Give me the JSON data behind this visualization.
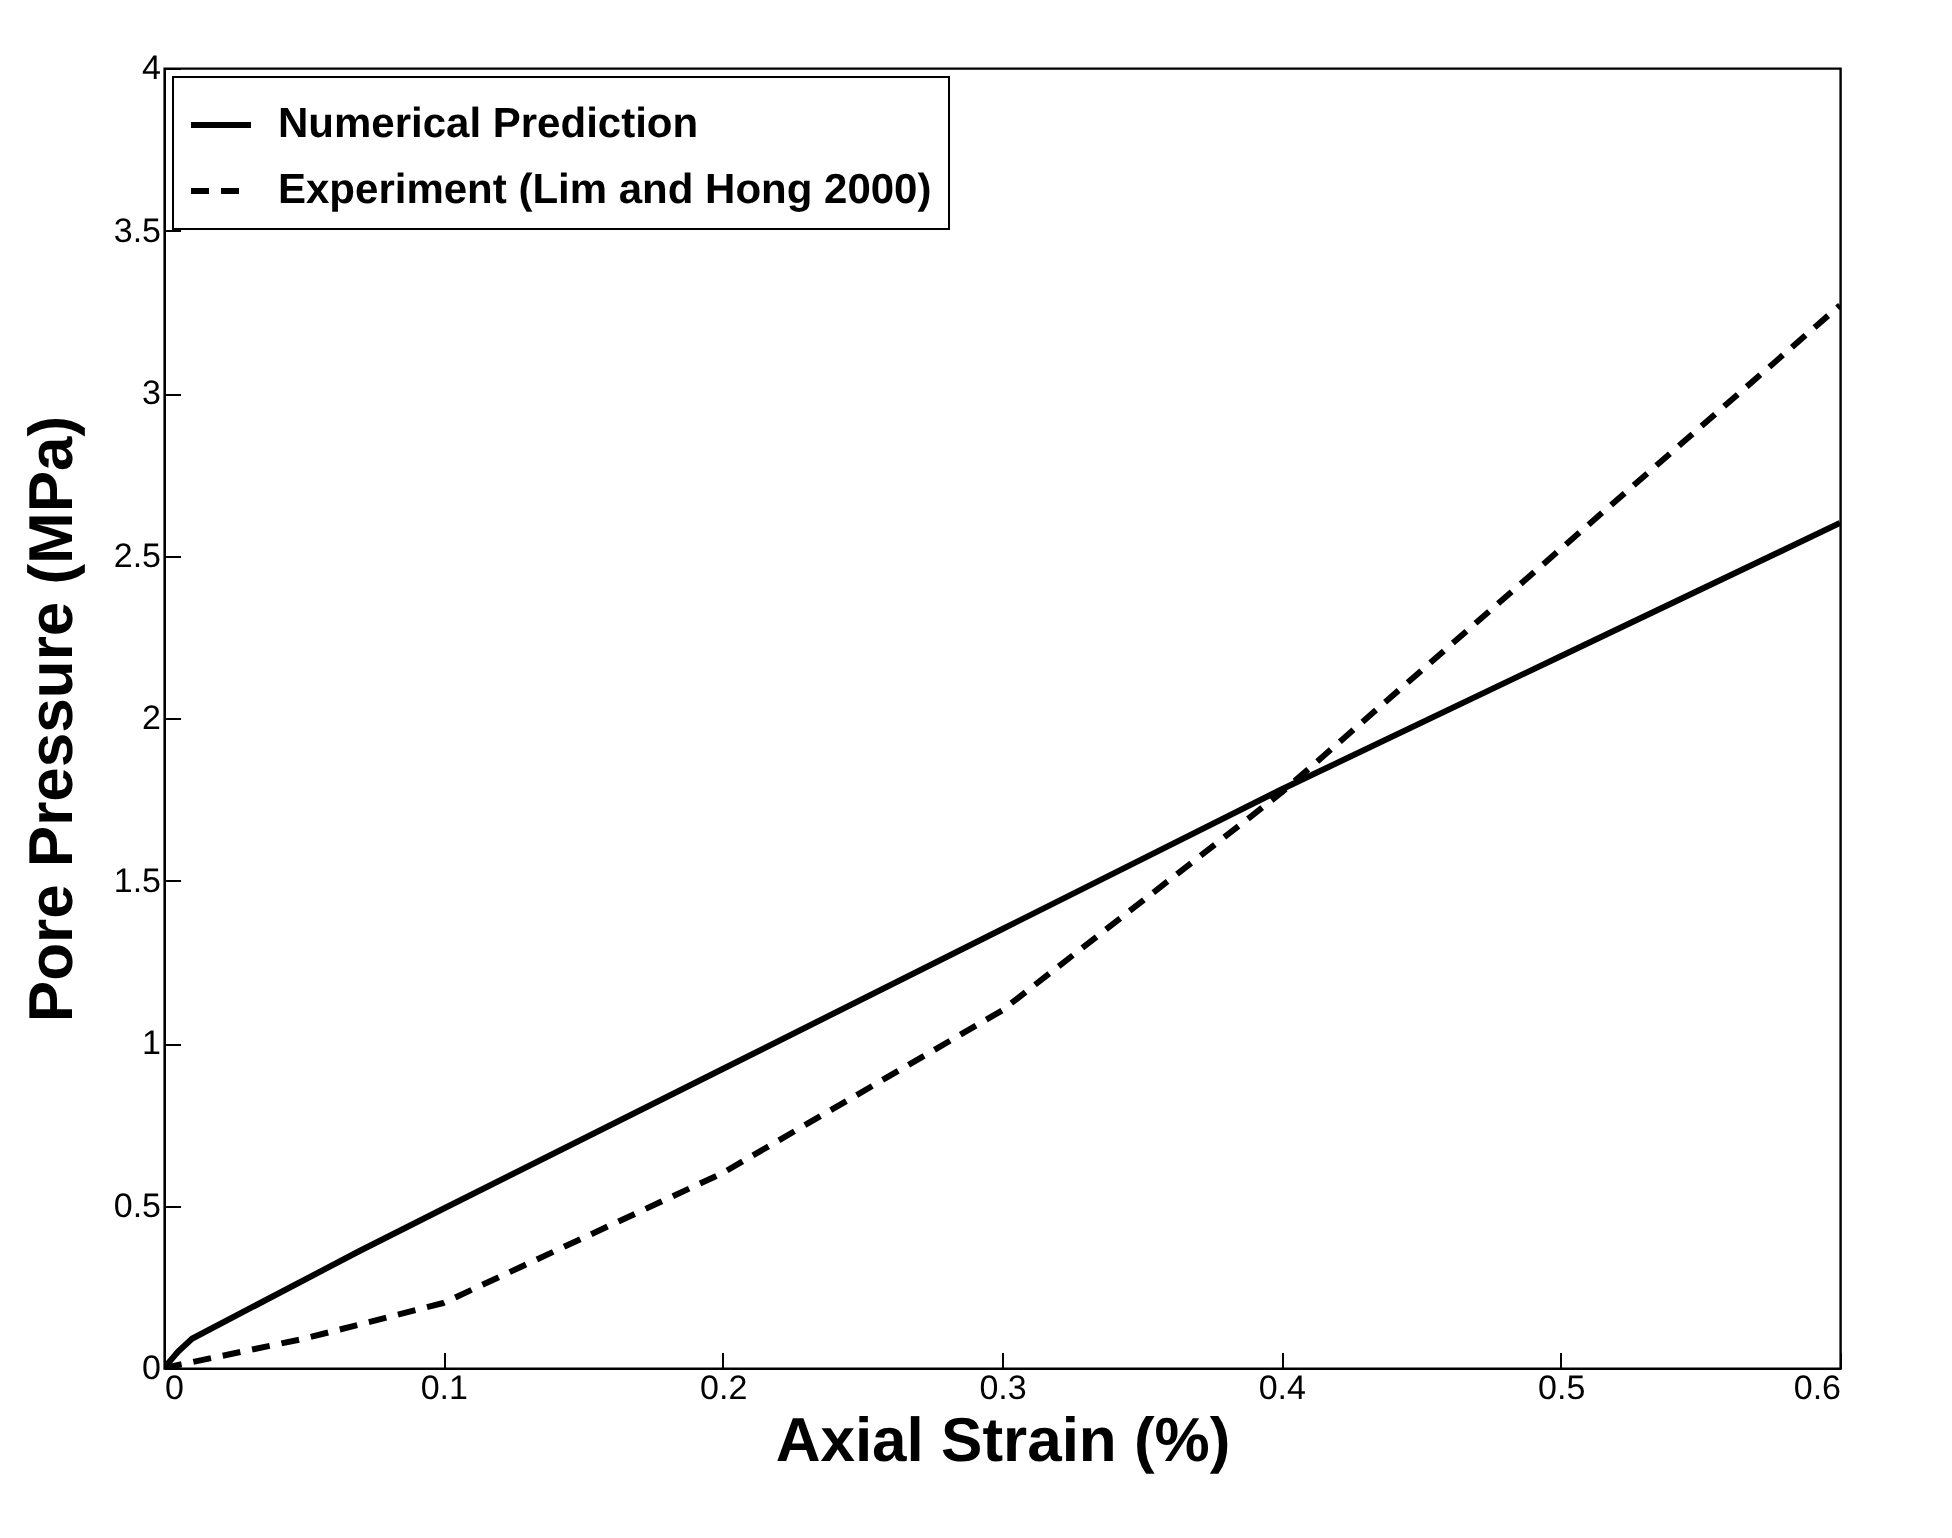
{
  "chart_data": {
    "type": "line",
    "xlabel": "Axial Strain (%)",
    "ylabel": "Pore Pressure (MPa)",
    "xlim": [
      0,
      0.6
    ],
    "xticks": [
      0,
      0.1,
      0.2,
      0.3,
      0.4,
      0.5,
      0.6
    ],
    "ylim": [
      0,
      4
    ],
    "yticks": [
      0,
      0.5,
      1,
      1.5,
      2,
      2.5,
      3,
      3.5,
      4
    ],
    "legend": "top left",
    "grid": false,
    "series": [
      {
        "name": "Numerical Prediction",
        "color": "#000000",
        "line_style": "solid",
        "x": [
          0,
          0.005,
          0.01,
          0.07,
          0.1,
          0.2,
          0.3,
          0.4,
          0.5,
          0.6
        ],
        "values": [
          0,
          0.05,
          0.09,
          0.36,
          0.49,
          0.92,
          1.35,
          1.78,
          2.19,
          2.6
        ]
      },
      {
        "name": "Experiment (Lim and Hong 2000)",
        "color": "#000000",
        "line_style": "dashed",
        "x": [
          0,
          0.05,
          0.1,
          0.2,
          0.3,
          0.4,
          0.5,
          0.6
        ],
        "values": [
          0,
          0.09,
          0.2,
          0.6,
          1.1,
          1.77,
          2.52,
          3.27
        ]
      }
    ]
  }
}
